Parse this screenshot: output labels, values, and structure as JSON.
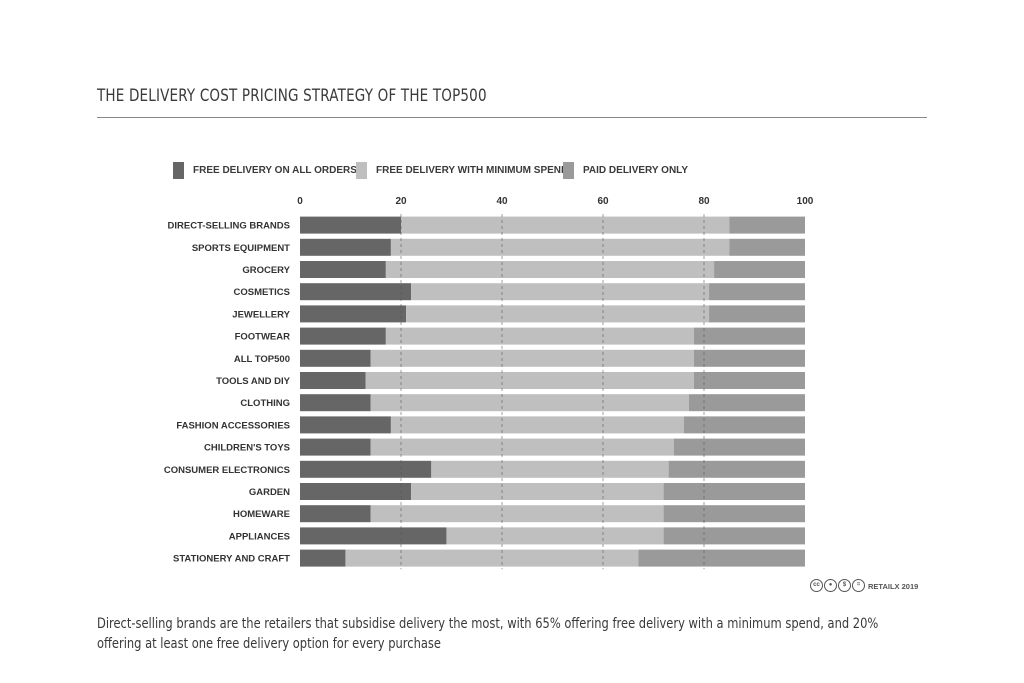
{
  "title": "THE DELIVERY COST PRICING STRATEGY OF THE TOP500",
  "caption": "Direct-selling brands are the retailers that subsidise delivery the most, with 65% offering free delivery with a minimum spend, and 20% offering at least one free delivery option for every purchase",
  "credit": {
    "text": "RETAILX 2019",
    "icons": [
      "cc-icon",
      "by-icon",
      "nc-icon",
      "nd-icon"
    ]
  },
  "chart_data": {
    "type": "bar",
    "orientation": "horizontal",
    "stacked": true,
    "xlim": [
      0,
      100
    ],
    "xticks": [
      0,
      20,
      40,
      60,
      80,
      100
    ],
    "grid": "dashed vertical at ticks",
    "legend_position": "top",
    "categories": [
      "DIRECT-SELLING BRANDS",
      "SPORTS EQUIPMENT",
      "GROCERY",
      "COSMETICS",
      "JEWELLERY",
      "FOOTWEAR",
      "ALL TOP500",
      "TOOLS AND DIY",
      "CLOTHING",
      "FASHION ACCESSORIES",
      "CHILDREN'S TOYS",
      "CONSUMER ELECTRONICS",
      "GARDEN",
      "HOMEWARE",
      "APPLIANCES",
      "STATIONERY AND CRAFT"
    ],
    "series": [
      {
        "name": "FREE DELIVERY ON ALL ORDERS",
        "color": "#666666",
        "values": [
          20,
          18,
          17,
          22,
          21,
          17,
          14,
          13,
          14,
          18,
          14,
          26,
          22,
          14,
          29,
          9
        ]
      },
      {
        "name": "FREE DELIVERY WITH MINIMUM SPEND",
        "color": "#bfbfbf",
        "values": [
          65,
          67,
          65,
          59,
          60,
          61,
          64,
          65,
          63,
          58,
          60,
          47,
          50,
          58,
          43,
          58
        ]
      },
      {
        "name": "PAID DELIVERY ONLY",
        "color": "#9a9a9a",
        "values": [
          15,
          15,
          18,
          19,
          19,
          22,
          22,
          22,
          23,
          24,
          26,
          27,
          28,
          28,
          28,
          33
        ]
      }
    ]
  }
}
